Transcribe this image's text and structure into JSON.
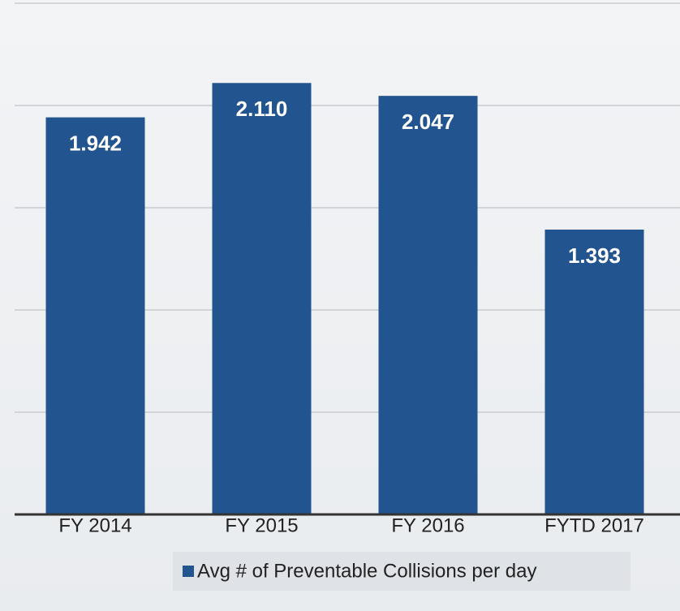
{
  "chart_data": {
    "type": "bar",
    "categories": [
      "FY 2014",
      "FY 2015",
      "FY 2016",
      "FYTD 2017"
    ],
    "series": [
      {
        "name": "Avg # of Preventable Collisions per day",
        "color": "#22548f",
        "values": [
          1.942,
          2.11,
          2.047,
          1.393
        ],
        "value_labels": [
          "1.942",
          "2.110",
          "2.047",
          "1.393"
        ]
      }
    ],
    "ylim": [
      0,
      2.5
    ],
    "yticks": [
      0,
      0.5,
      1,
      1.5,
      2,
      2.5
    ],
    "grid": true,
    "legend": "bottom"
  }
}
